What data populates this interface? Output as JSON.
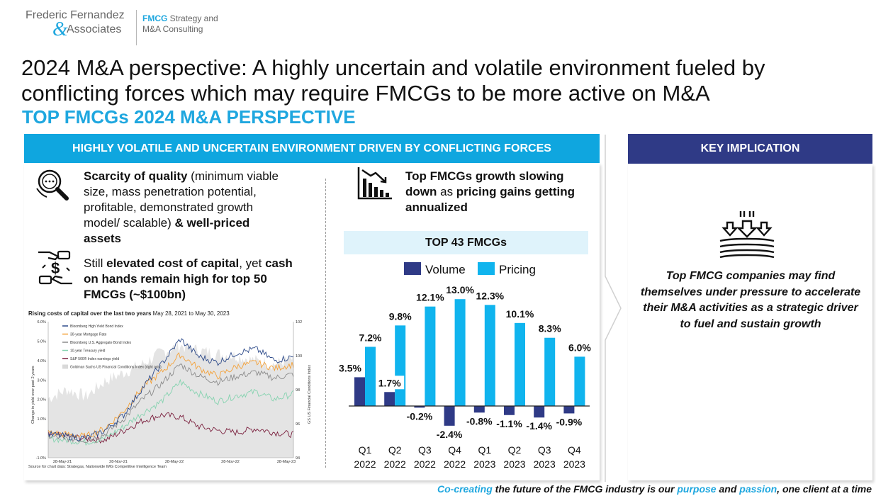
{
  "brand": {
    "name_line1": "Frederic Fernandez",
    "name_amp": "&",
    "name_line2": "Associates",
    "tag_bold": "FMCG",
    "tag_rest": " Strategy and",
    "tag_line2": "M&A Consulting"
  },
  "title": "2024 M&A perspective: A highly uncertain and volatile environment fueled by conflicting forces which may require FMCGs to be more active on M&A",
  "subtitle": "TOP FMCGs 2024 M&A PERSPECTIVE",
  "left_header": "HIGHLY VOLATILE AND UNCERTAIN ENVIRONMENT DRIVEN BY CONFLICTING FORCES",
  "points": {
    "p1_bold": "Scarcity of quality",
    "p1_rest": " (minimum viable size, mass penetration potential, profitable, demonstrated growth model/ scalable) ",
    "p1_bold2": "& well-priced assets",
    "p2_pre": "Still ",
    "p2_bold": "elevated cost of capital",
    "p2_mid": ", yet ",
    "p2_bold2": "cash on hands remain high for top 50 FMCGs (~$100bn)",
    "p3_a": "Top FMCGs growth slowing down",
    "p3_b": " as ",
    "p3_c": "pricing gains getting annualized"
  },
  "line_chart": {
    "title_bold": "Rising costs of capital over the last two years",
    "title_rest": " May 28, 2021 to May 30, 2023",
    "source": "Source for chart data: Strategas, Nationwide IMG Competitive Intelligence Team",
    "ylabel": "Change in yield over past 2 years",
    "y2label": "GS US Financial Conditions Index",
    "left_ticks": [
      "6.0%",
      "5.0%",
      "4.0%",
      "3.0%",
      "2.0%",
      "1.0%",
      "-1.0%"
    ],
    "right_ticks": [
      "102",
      "100",
      "98",
      "96",
      "94"
    ],
    "x_ticks": [
      "28-May-21",
      "28-Nov-21",
      "28-May-22",
      "28-Nov-22",
      "28-May-23"
    ],
    "legend": [
      {
        "name": "Bloomberg High Yield Bond Index",
        "color": "#2d4a8a"
      },
      {
        "name": "30-year Mortgage Rate",
        "color": "#f4a23a"
      },
      {
        "name": "Bloomberg U.S. Aggregate Bond Index",
        "color": "#8c8c8c"
      },
      {
        "name": "10-year Treasury yield",
        "color": "#86d3b0"
      },
      {
        "name": "S&P 500® Index earnings yield",
        "color": "#7a1f3d"
      },
      {
        "name": "Goldman Sachs US Financial Conditions Index (right axis)",
        "color": "#d9d9d9"
      }
    ]
  },
  "chart_data": {
    "type": "bar",
    "title": "TOP 43 FMCGs",
    "categories": [
      "Q1 2022",
      "Q2 2022",
      "Q3 2022",
      "Q4 2022",
      "Q1 2023",
      "Q2 2023",
      "Q3 2023",
      "Q4 2023"
    ],
    "category_lines": [
      [
        "Q1",
        "2022"
      ],
      [
        "Q2",
        "2022"
      ],
      [
        "Q3",
        "2022"
      ],
      [
        "Q4",
        "2022"
      ],
      [
        "Q1",
        "2023"
      ],
      [
        "Q2",
        "2023"
      ],
      [
        "Q3",
        "2023"
      ],
      [
        "Q4",
        "2023"
      ]
    ],
    "series": [
      {
        "name": "Volume",
        "color": "#2f3a86",
        "values": [
          3.5,
          1.7,
          -0.2,
          -2.4,
          -0.8,
          -1.1,
          -1.4,
          -0.9
        ],
        "labels": [
          "3.5%",
          "1.7%",
          "-0.2%",
          "-2.4%",
          "-0.8%",
          "-1.1%",
          "-1.4%",
          "-0.9%"
        ]
      },
      {
        "name": "Pricing",
        "color": "#10b4ee",
        "values": [
          7.2,
          9.8,
          12.1,
          13.0,
          12.3,
          10.1,
          8.3,
          6.0
        ],
        "labels": [
          "7.2%",
          "9.8%",
          "12.1%",
          "13.0%",
          "12.3%",
          "10.1%",
          "8.3%",
          "6.0%"
        ]
      }
    ],
    "legend_position": "top",
    "grid": false
  },
  "right_header": "KEY IMPLICATION",
  "implication": "Top FMCG companies may find themselves under pressure to accelerate their M&A activities as a strategic driver to fuel and sustain growth",
  "footer": {
    "a": "Co-creating",
    "b": " the future of the FMCG industry is our ",
    "c": "purpose",
    "d": " and ",
    "e": "passion",
    "f": ", one client at a time"
  },
  "colors": {
    "accent": "#1fa7df",
    "navy": "#2f3a86",
    "header_blue": "#0fa6df"
  }
}
